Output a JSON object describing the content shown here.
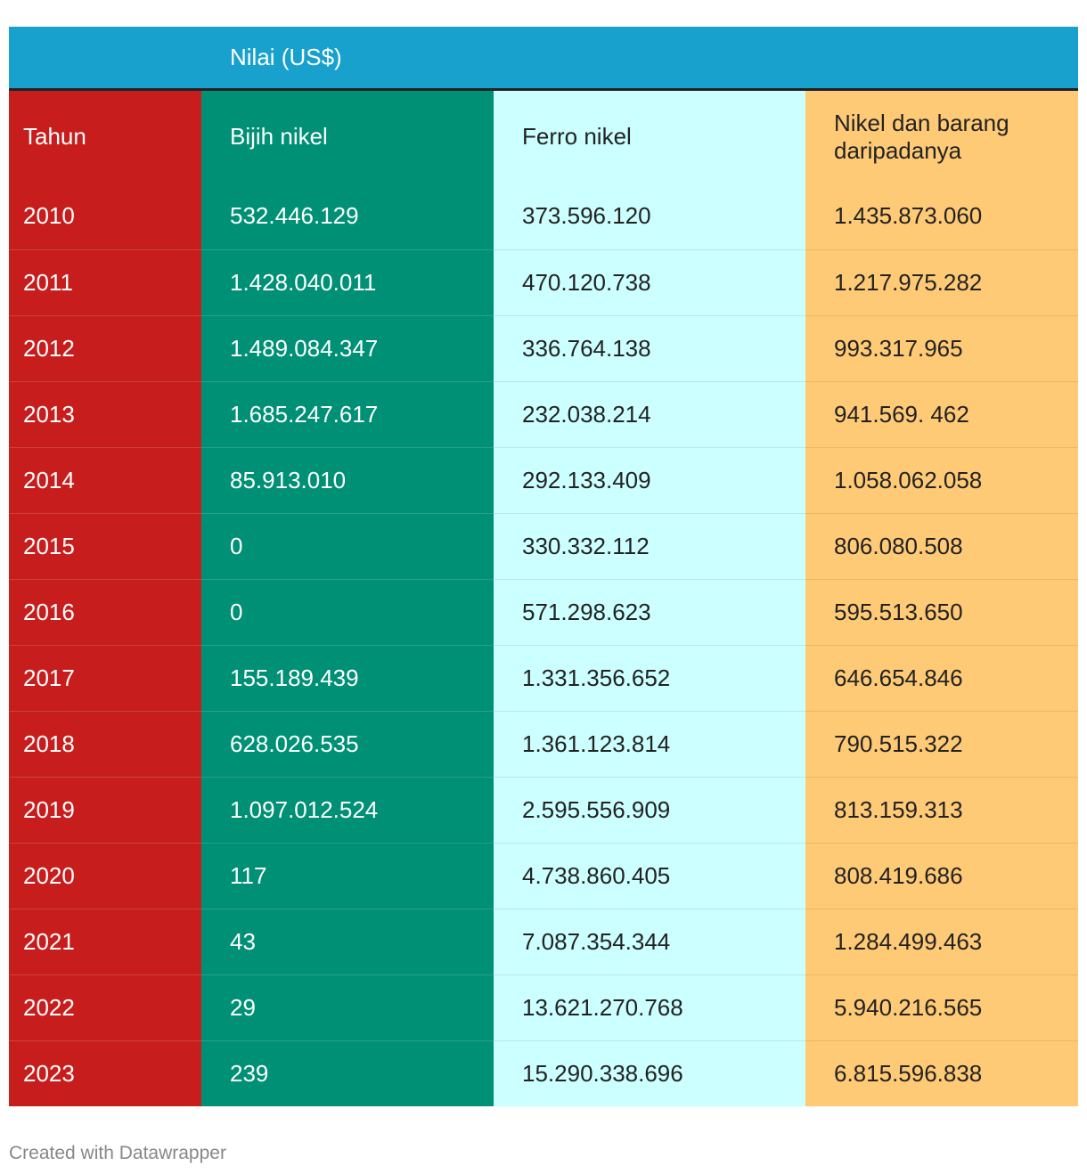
{
  "chart_data": {
    "type": "table",
    "group_header": "Nilai (US$)",
    "columns": [
      "Tahun",
      "Bijih nikel",
      "Ferro nikel",
      "Nikel dan barang daripadanya"
    ],
    "rows": [
      [
        "2010",
        "532.446.129",
        "373.596.120",
        "1.435.873.060"
      ],
      [
        "2011",
        "1.428.040.011",
        "470.120.738",
        "1.217.975.282"
      ],
      [
        "2012",
        "1.489.084.347",
        "336.764.138",
        "993.317.965"
      ],
      [
        "2013",
        "1.685.247.617",
        "232.038.214",
        "941.569. 462"
      ],
      [
        "2014",
        "85.913.010",
        "292.133.409",
        "1.058.062.058"
      ],
      [
        "2015",
        "0",
        "330.332.112",
        "806.080.508"
      ],
      [
        "2016",
        "0",
        "571.298.623",
        "595.513.650"
      ],
      [
        "2017",
        "155.189.439",
        "1.331.356.652",
        "646.654.846"
      ],
      [
        "2018",
        "628.026.535",
        "1.361.123.814",
        "790.515.322"
      ],
      [
        "2019",
        "1.097.012.524",
        "2.595.556.909",
        "813.159.313"
      ],
      [
        "2020",
        "117",
        "4.738.860.405",
        "808.419.686"
      ],
      [
        "2021",
        "43",
        "7.087.354.344",
        "1.284.499.463"
      ],
      [
        "2022",
        "29",
        "13.621.270.768",
        "5.940.216.565"
      ],
      [
        "2023",
        "239",
        "15.290.338.696",
        "6.815.596.838"
      ]
    ],
    "column_colors": [
      "#c71e1d",
      "#009075",
      "#ccffff",
      "#ffca76"
    ],
    "header_color": "#18a1cd"
  },
  "footer": "Created with Datawrapper"
}
